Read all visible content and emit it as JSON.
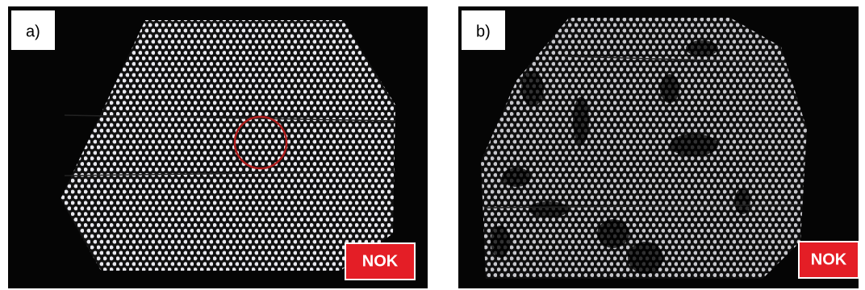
{
  "panels": [
    {
      "label": "a)",
      "badge": "NOK"
    },
    {
      "label": "b)",
      "badge": "NOK"
    }
  ]
}
